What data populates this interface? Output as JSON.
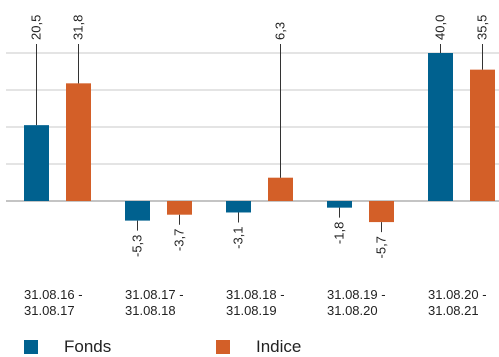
{
  "chart_data": {
    "type": "bar",
    "categories": [
      [
        "31.08.16 -",
        "31.08.17"
      ],
      [
        "31.08.17 -",
        "31.08.18"
      ],
      [
        "31.08.18 -",
        "31.08.19"
      ],
      [
        "31.08.19 -",
        "31.08.20"
      ],
      [
        "31.08.20 -",
        "31.08.21"
      ]
    ],
    "series": [
      {
        "name": "Fonds",
        "color": "#00618f",
        "values": [
          20.5,
          -5.3,
          -3.1,
          -1.8,
          40.0
        ],
        "labels": [
          "20,5",
          "-5,3",
          "-3,1",
          "-1,8",
          "40,0"
        ]
      },
      {
        "name": "Indice",
        "color": "#d35f28",
        "values": [
          31.8,
          -3.7,
          6.3,
          -5.7,
          35.5
        ],
        "labels": [
          "31,8",
          "-3,7",
          "6,3",
          "-5,7",
          "35,5"
        ]
      }
    ],
    "ylim": [
      -10,
      40
    ],
    "grid": true,
    "legend": "bottom-left"
  }
}
